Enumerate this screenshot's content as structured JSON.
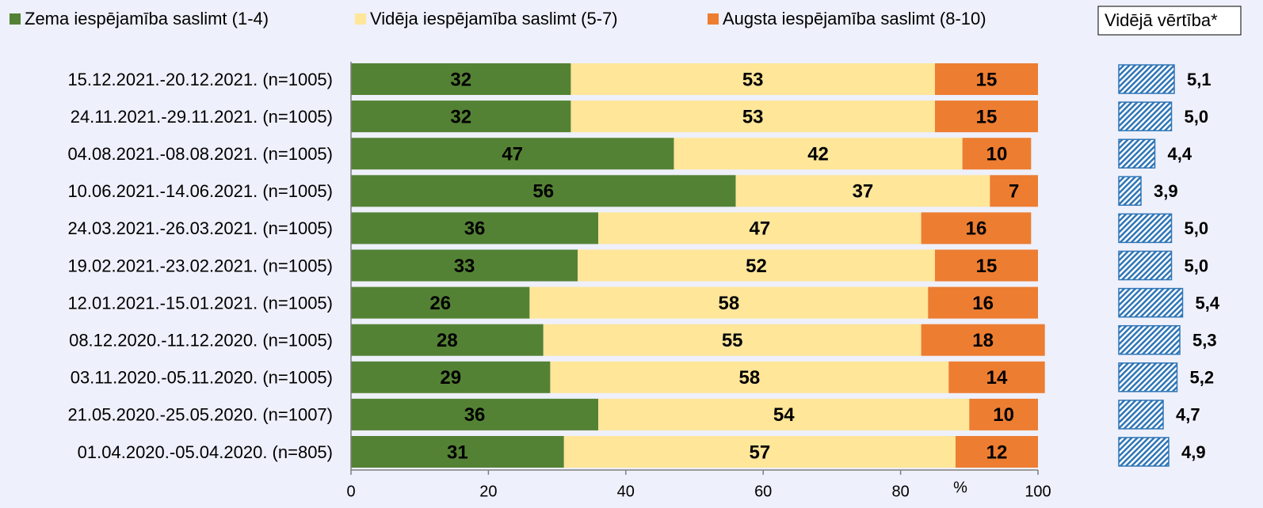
{
  "chart_data": [
    {
      "type": "stacked-bar-horizontal",
      "categories": [
        "15.12.2021.-20.12.2021. (n=1005)",
        "24.11.2021.-29.11.2021. (n=1005)",
        "04.08.2021.-08.08.2021. (n=1005)",
        "10.06.2021.-14.06.2021. (n=1005)",
        "24.03.2021.-26.03.2021. (n=1005)",
        "19.02.2021.-23.02.2021. (n=1005)",
        "12.01.2021.-15.01.2021. (n=1005)",
        "08.12.2020.-11.12.2020. (n=1005)",
        "03.11.2020.-05.11.2020. (n=1005)",
        "21.05.2020.-25.05.2020. (n=1007)",
        "01.04.2020.-05.04.2020. (n=805)"
      ],
      "series": [
        {
          "name": "Zema iespējamība saslimt (1-4)",
          "color": "#548235",
          "label_color": "#ffffff",
          "values": [
            32,
            32,
            47,
            56,
            36,
            33,
            26,
            28,
            29,
            36,
            31
          ]
        },
        {
          "name": "Vidēja iespējamība saslimt (5-7)",
          "color": "#ffe699",
          "label_color": "#000000",
          "values": [
            53,
            53,
            42,
            37,
            47,
            52,
            58,
            55,
            58,
            54,
            57
          ]
        },
        {
          "name": "Augsta iespējamība saslimt (8-10)",
          "color": "#ed7d31",
          "label_color": "#000000",
          "values": [
            15,
            15,
            10,
            7,
            16,
            15,
            16,
            18,
            14,
            10,
            12
          ]
        }
      ],
      "xlabel": "%",
      "xlim": [
        0,
        100
      ],
      "xticks": [
        0,
        20,
        40,
        60,
        80,
        100
      ]
    },
    {
      "type": "bar-horizontal",
      "series": [
        {
          "name": "Vidējā vērtība*",
          "color": "#2e75b6",
          "values": [
            5.1,
            5.0,
            4.4,
            3.9,
            5.0,
            5.0,
            5.4,
            5.3,
            5.2,
            4.7,
            4.9
          ],
          "value_labels": [
            "5,1",
            "5,0",
            "4,4",
            "3,9",
            "5,0",
            "5,0",
            "5,4",
            "5,3",
            "5,2",
            "4,7",
            "4,9"
          ]
        }
      ],
      "xlim": [
        3.1,
        5.6
      ]
    }
  ]
}
